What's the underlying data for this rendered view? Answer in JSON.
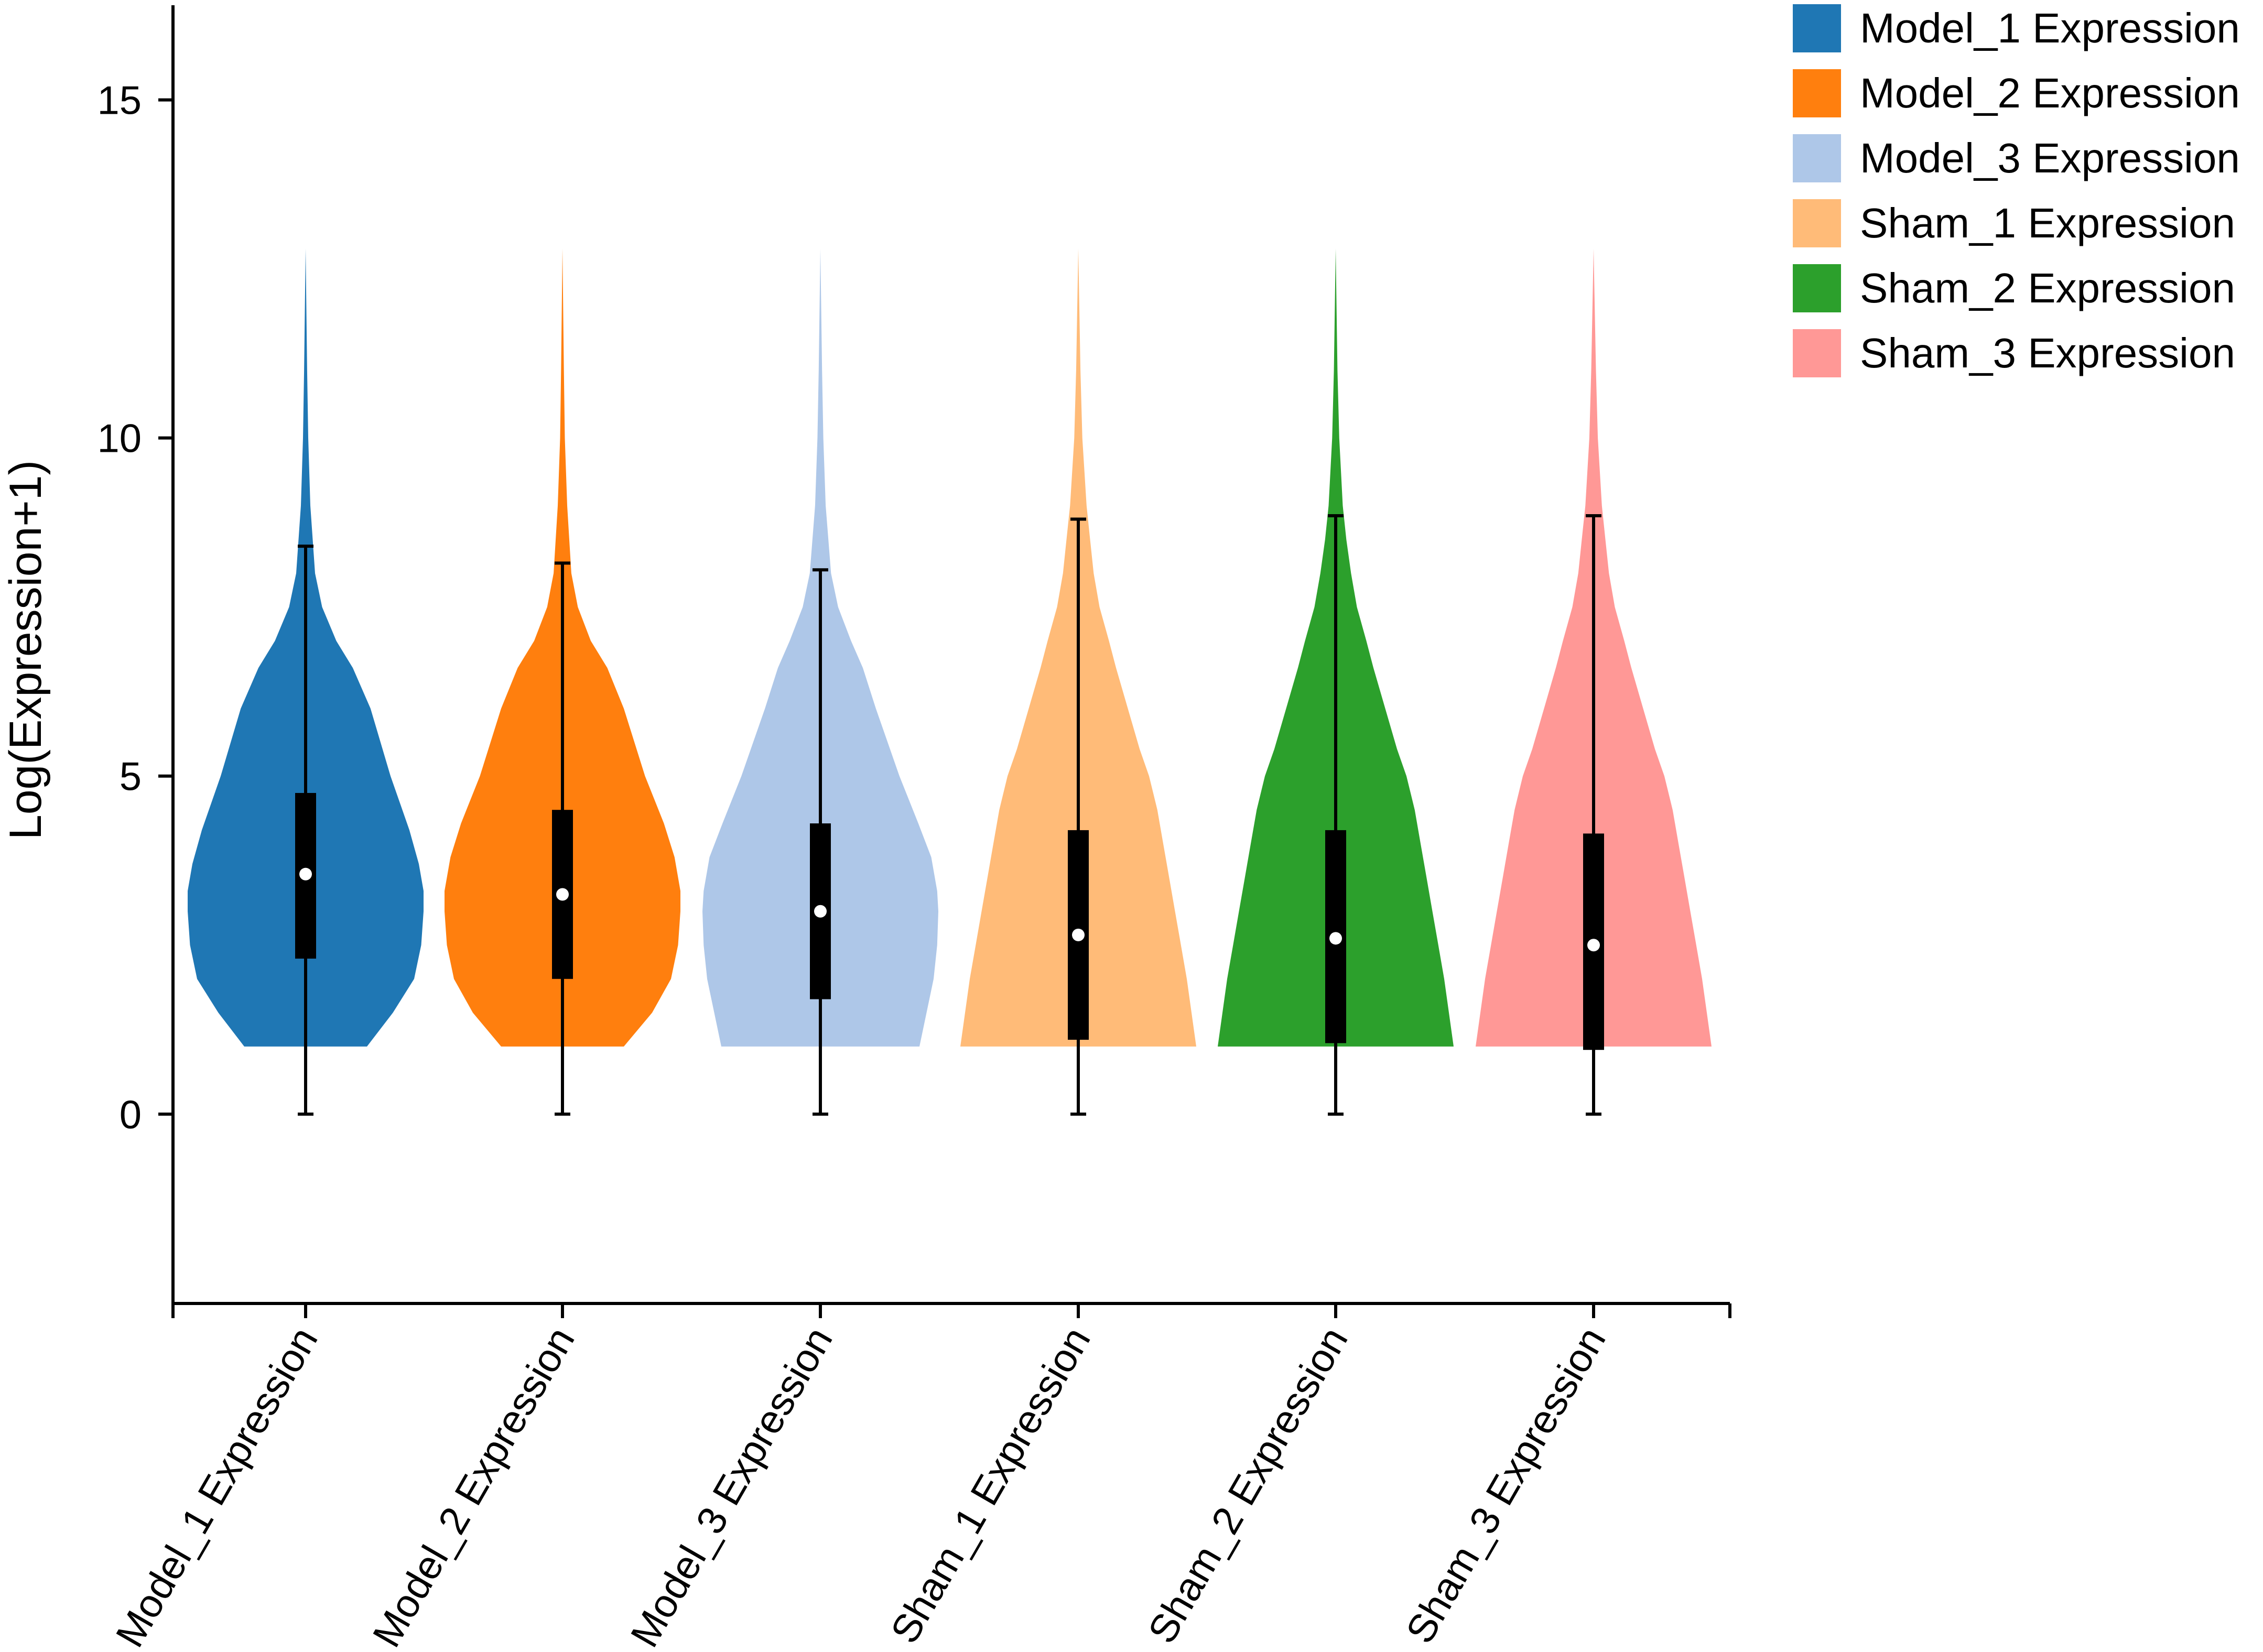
{
  "chart_data": {
    "type": "violin",
    "ylabel": "Log(Expression+1)",
    "ylim": [
      -2.8,
      16.4
    ],
    "yticks": [
      0,
      5,
      10,
      15
    ],
    "categories": [
      "Model_1 Expression",
      "Model_2 Expression",
      "Model_3 Expression",
      "Sham_1 Expression",
      "Sham_2 Expression",
      "Sham_3 Expression"
    ],
    "legend_labels": [
      "Model_1 Expression",
      "Model_2 Expression",
      "Model_3 Expression",
      "Sham_1 Expression",
      "Sham_2 Expression",
      "Sham_3 Expression"
    ],
    "legend_position": "top-right",
    "colors": [
      "#1f77b4",
      "#ff7f0e",
      "#aec7e8",
      "#ffbb78",
      "#2ca02c",
      "#ff9896"
    ],
    "series": [
      {
        "min": 0,
        "q1": 2.3,
        "median": 3.55,
        "q3": 4.75,
        "max": 8.4,
        "violin_top": 12.8,
        "density": [
          [
            1.0,
            0.52
          ],
          [
            1.5,
            0.74
          ],
          [
            2.0,
            0.92
          ],
          [
            2.5,
            0.98
          ],
          [
            3.0,
            1.0
          ],
          [
            3.3,
            1.0
          ],
          [
            3.7,
            0.96
          ],
          [
            4.2,
            0.88
          ],
          [
            5.0,
            0.72
          ],
          [
            6.0,
            0.55
          ],
          [
            6.6,
            0.4
          ],
          [
            7.0,
            0.26
          ],
          [
            7.5,
            0.14
          ],
          [
            8.0,
            0.08
          ],
          [
            9.0,
            0.04
          ],
          [
            10.0,
            0.022
          ],
          [
            11.0,
            0.013
          ],
          [
            12.8,
            0.0
          ]
        ]
      },
      {
        "min": 0,
        "q1": 2.0,
        "median": 3.25,
        "q3": 4.5,
        "max": 8.15,
        "violin_top": 12.8,
        "density": [
          [
            1.0,
            0.52
          ],
          [
            1.5,
            0.76
          ],
          [
            2.0,
            0.92
          ],
          [
            2.5,
            0.98
          ],
          [
            3.0,
            1.0
          ],
          [
            3.3,
            1.0
          ],
          [
            3.8,
            0.95
          ],
          [
            4.3,
            0.86
          ],
          [
            5.0,
            0.7
          ],
          [
            6.0,
            0.52
          ],
          [
            6.6,
            0.38
          ],
          [
            7.0,
            0.24
          ],
          [
            7.5,
            0.13
          ],
          [
            8.0,
            0.075
          ],
          [
            9.0,
            0.04
          ],
          [
            10.0,
            0.02
          ],
          [
            11.0,
            0.012
          ],
          [
            12.8,
            0.0
          ]
        ]
      },
      {
        "min": 0,
        "q1": 1.7,
        "median": 3.0,
        "q3": 4.3,
        "max": 8.05,
        "violin_top": 12.8,
        "density": [
          [
            1.0,
            0.84
          ],
          [
            1.5,
            0.9
          ],
          [
            2.0,
            0.96
          ],
          [
            2.5,
            0.99
          ],
          [
            3.0,
            1.0
          ],
          [
            3.3,
            0.99
          ],
          [
            3.8,
            0.94
          ],
          [
            4.3,
            0.83
          ],
          [
            5.0,
            0.67
          ],
          [
            6.0,
            0.47
          ],
          [
            6.6,
            0.36
          ],
          [
            7.0,
            0.26
          ],
          [
            7.5,
            0.15
          ],
          [
            8.0,
            0.09
          ],
          [
            9.0,
            0.045
          ],
          [
            10.0,
            0.025
          ],
          [
            11.0,
            0.014
          ],
          [
            12.8,
            0.0
          ]
        ]
      },
      {
        "min": 0,
        "q1": 1.1,
        "median": 2.65,
        "q3": 4.2,
        "max": 8.8,
        "violin_top": 12.8,
        "density": [
          [
            1.0,
            1.0
          ],
          [
            1.5,
            0.96
          ],
          [
            2.0,
            0.92
          ],
          [
            2.5,
            0.87
          ],
          [
            3.0,
            0.82
          ],
          [
            3.5,
            0.77
          ],
          [
            4.0,
            0.72
          ],
          [
            4.5,
            0.67
          ],
          [
            5.0,
            0.6
          ],
          [
            5.4,
            0.52
          ],
          [
            6.0,
            0.42
          ],
          [
            6.6,
            0.32
          ],
          [
            7.0,
            0.26
          ],
          [
            7.5,
            0.18
          ],
          [
            8.0,
            0.13
          ],
          [
            8.5,
            0.1
          ],
          [
            9.0,
            0.07
          ],
          [
            10.0,
            0.034
          ],
          [
            11.0,
            0.018
          ],
          [
            12.8,
            0.0
          ]
        ]
      },
      {
        "min": 0,
        "q1": 1.05,
        "median": 2.6,
        "q3": 4.2,
        "max": 8.85,
        "violin_top": 12.8,
        "density": [
          [
            1.0,
            1.0
          ],
          [
            1.5,
            0.96
          ],
          [
            2.0,
            0.92
          ],
          [
            2.5,
            0.87
          ],
          [
            3.0,
            0.82
          ],
          [
            3.5,
            0.77
          ],
          [
            4.0,
            0.72
          ],
          [
            4.5,
            0.67
          ],
          [
            5.0,
            0.6
          ],
          [
            5.4,
            0.52
          ],
          [
            6.0,
            0.42
          ],
          [
            6.6,
            0.32
          ],
          [
            7.0,
            0.26
          ],
          [
            7.5,
            0.18
          ],
          [
            8.0,
            0.13
          ],
          [
            8.5,
            0.09
          ],
          [
            9.0,
            0.06
          ],
          [
            10.0,
            0.03
          ],
          [
            11.0,
            0.015
          ],
          [
            12.8,
            0.0
          ]
        ]
      },
      {
        "min": 0,
        "q1": 0.95,
        "median": 2.5,
        "q3": 4.15,
        "max": 8.85,
        "violin_top": 12.8,
        "density": [
          [
            1.0,
            1.0
          ],
          [
            1.5,
            0.96
          ],
          [
            2.0,
            0.92
          ],
          [
            2.5,
            0.87
          ],
          [
            3.0,
            0.82
          ],
          [
            3.5,
            0.77
          ],
          [
            4.0,
            0.72
          ],
          [
            4.5,
            0.67
          ],
          [
            5.0,
            0.6
          ],
          [
            5.4,
            0.52
          ],
          [
            6.0,
            0.42
          ],
          [
            6.6,
            0.32
          ],
          [
            7.0,
            0.26
          ],
          [
            7.5,
            0.18
          ],
          [
            8.0,
            0.13
          ],
          [
            8.5,
            0.1
          ],
          [
            9.0,
            0.07
          ],
          [
            10.0,
            0.036
          ],
          [
            11.0,
            0.02
          ],
          [
            12.8,
            0.0
          ]
        ]
      }
    ]
  }
}
